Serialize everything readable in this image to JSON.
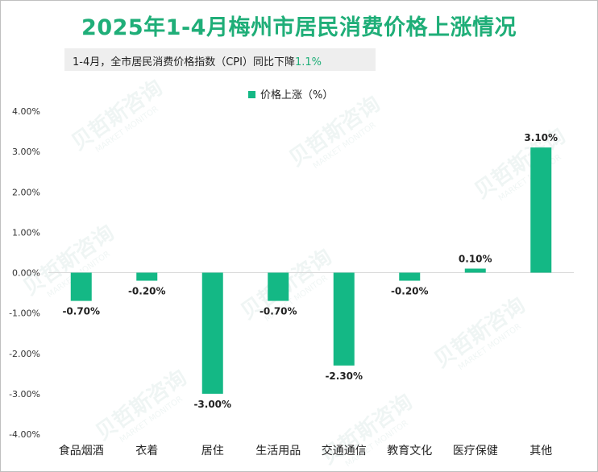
{
  "header": {
    "title": "2025年1-4月梅州市居民消费价格上涨情况",
    "subtitle_text": "1-4月，全市居民消费价格指数（CPI）同比下降",
    "subtitle_value": "1.1%"
  },
  "watermark": {
    "cn": "贝哲斯咨询",
    "en": "MARKET MONITOR"
  },
  "colors": {
    "bar": "#14b885",
    "title": "#1fae78",
    "grid": "#d9d9d9"
  },
  "chart_data": {
    "type": "bar",
    "title": "2025年1-4月梅州市居民消费价格上涨情况",
    "categories": [
      "食品烟酒",
      "衣着",
      "居住",
      "生活用品",
      "交通通信",
      "教育文化",
      "医疗保健",
      "其他"
    ],
    "series": [
      {
        "name": "价格上涨（%）",
        "values": [
          -0.7,
          -0.2,
          -3.0,
          -0.7,
          -2.3,
          -0.2,
          0.1,
          3.1
        ],
        "labels": [
          "-0.70%",
          "-0.20%",
          "-3.00%",
          "-0.70%",
          "-2.30%",
          "-0.20%",
          "0.10%",
          "3.10%"
        ]
      }
    ],
    "ylim": [
      -4,
      4
    ],
    "yticks": [
      4,
      3,
      2,
      1,
      0,
      -1,
      -2,
      -3,
      -4
    ],
    "ytick_labels": [
      "4.00%",
      "3.00%",
      "2.00%",
      "1.00%",
      "0.00%",
      "-1.00%",
      "-2.00%",
      "-3.00%",
      "-4.00%"
    ],
    "xlabel": "",
    "ylabel": "",
    "legend_position": "top-center",
    "grid": false
  }
}
